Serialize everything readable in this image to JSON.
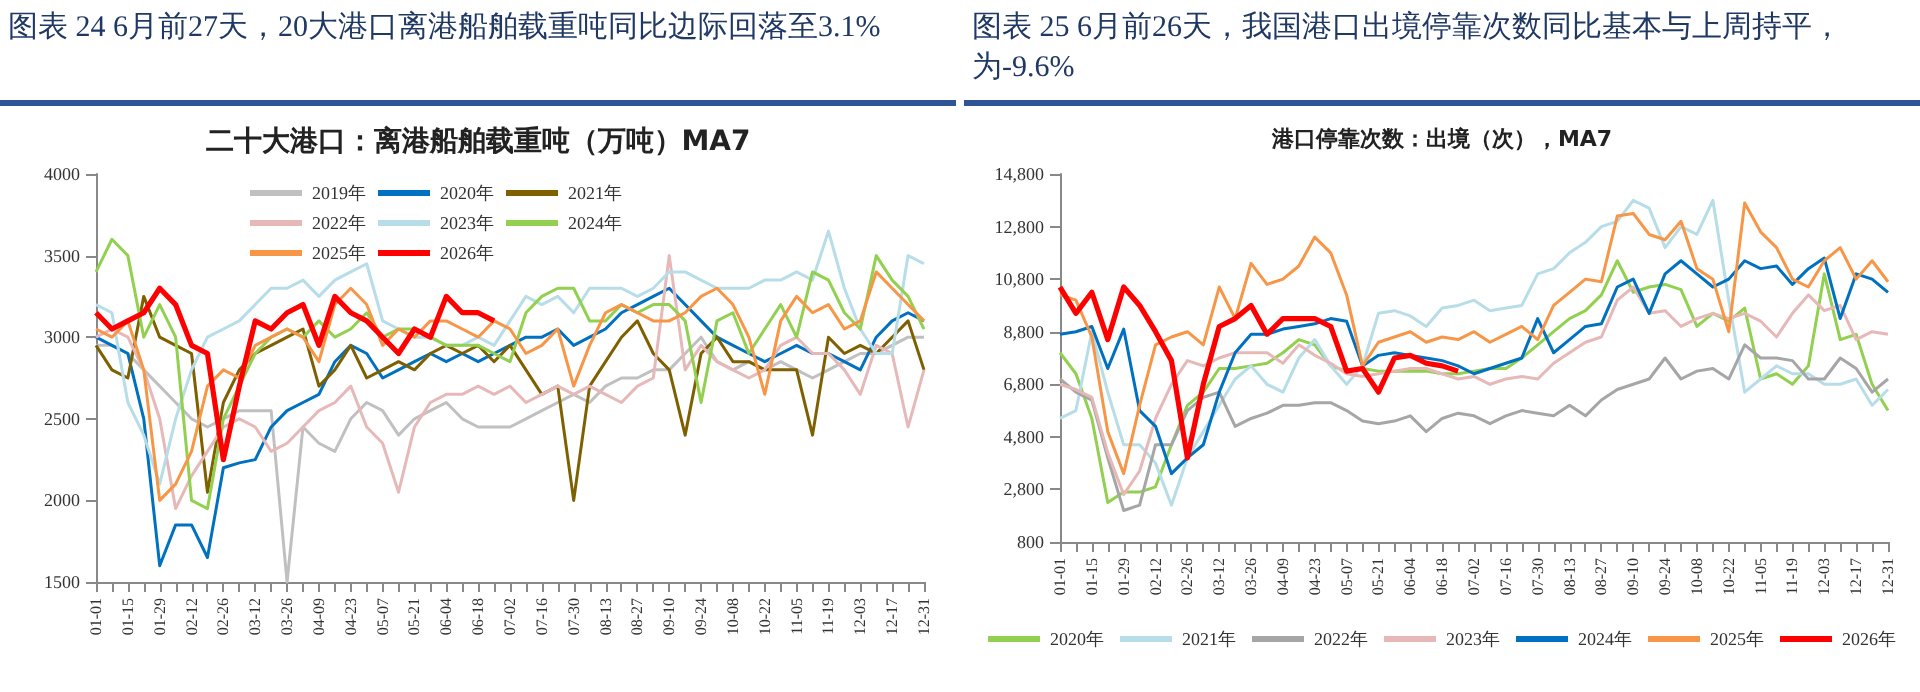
{
  "chart_data": [
    {
      "type": "line",
      "title": "图表 24 6月前27天，20大港口离港船舶载重吨同比边际回落至3.1%",
      "subtitle": "二十大港口：离港船舶载重吨（万吨）MA7",
      "categories": [
        "01-01",
        null,
        "01-15",
        null,
        "01-29",
        null,
        "02-12",
        null,
        "02-26",
        null,
        "03-12",
        null,
        "03-26",
        null,
        "04-09",
        null,
        "04-23",
        null,
        "05-07",
        null,
        "05-21",
        null,
        "06-04",
        null,
        "06-18",
        null,
        "07-02",
        null,
        "07-16",
        null,
        "07-30",
        null,
        "08-13",
        null,
        "08-27",
        null,
        "09-10",
        null,
        "09-24",
        null,
        "10-08",
        null,
        "10-22",
        null,
        "11-05",
        null,
        "11-19",
        null,
        "12-03",
        null,
        "12-17",
        null,
        "12-31"
      ],
      "ylim": [
        1500,
        4000
      ],
      "yticks": [
        1500,
        2000,
        2500,
        3000,
        3500,
        4000
      ],
      "legend": "top",
      "series": [
        {
          "name": "2019年",
          "color": "#c0c0c0",
          "values": [
            2950,
            2950,
            2900,
            2800,
            2700,
            2600,
            2500,
            2450,
            2500,
            2550,
            2550,
            2550,
            1500,
            2450,
            2350,
            2300,
            2500,
            2600,
            2550,
            2400,
            2500,
            2550,
            2600,
            2500,
            2450,
            2450,
            2450,
            2500,
            2550,
            2600,
            2650,
            2600,
            2700,
            2750,
            2750,
            2800,
            2800,
            2900,
            3000,
            2850,
            2800,
            2850,
            2800,
            2850,
            2800,
            2750,
            2800,
            2850,
            2900,
            2900,
            2950,
            3000,
            3000
          ]
        },
        {
          "name": "2020年",
          "color": "#0070c0",
          "values": [
            3000,
            2950,
            2900,
            2500,
            1600,
            1850,
            1850,
            1650,
            2200,
            2230,
            2250,
            2450,
            2550,
            2600,
            2650,
            2850,
            2950,
            2900,
            2750,
            2800,
            2850,
            2900,
            2850,
            2900,
            2850,
            2900,
            2950,
            3000,
            3000,
            3050,
            2950,
            3000,
            3050,
            3150,
            3200,
            3250,
            3300,
            3200,
            3100,
            3000,
            2950,
            2900,
            2850,
            2900,
            2950,
            2900,
            2900,
            2850,
            2800,
            3000,
            3100,
            3150,
            3100
          ]
        },
        {
          "name": "2021年",
          "color": "#7f6000",
          "values": [
            2950,
            2800,
            2750,
            3250,
            3000,
            2950,
            2900,
            2050,
            2600,
            2800,
            2900,
            2950,
            3000,
            3050,
            2700,
            2800,
            2950,
            2750,
            2800,
            2850,
            2800,
            2900,
            2950,
            2900,
            2950,
            2850,
            2950,
            2800,
            2650,
            2700,
            2000,
            2700,
            2850,
            3000,
            3100,
            2900,
            2800,
            2400,
            2900,
            3000,
            2850,
            2850,
            2800,
            2800,
            2800,
            2400,
            3000,
            2900,
            2950,
            2900,
            3000,
            3100,
            2800
          ]
        },
        {
          "name": "2022年",
          "color": "#e6b9b8",
          "values": [
            3000,
            3050,
            3000,
            2800,
            2500,
            1950,
            2150,
            2300,
            2450,
            2500,
            2450,
            2300,
            2350,
            2450,
            2550,
            2600,
            2700,
            2450,
            2350,
            2050,
            2450,
            2600,
            2650,
            2650,
            2700,
            2650,
            2700,
            2600,
            2650,
            2700,
            2650,
            2700,
            2650,
            2600,
            2700,
            2750,
            3500,
            2800,
            2950,
            2850,
            2800,
            2750,
            2800,
            2950,
            3000,
            2900,
            2900,
            2800,
            2650,
            2950,
            2900,
            2450,
            2800
          ]
        },
        {
          "name": "2023年",
          "color": "#b7dde8",
          "values": [
            3200,
            3150,
            2600,
            2400,
            2100,
            2500,
            2800,
            3000,
            3050,
            3100,
            3200,
            3300,
            3300,
            3350,
            3250,
            3350,
            3400,
            3450,
            3100,
            3050,
            3000,
            3000,
            2950,
            2950,
            3000,
            2950,
            3100,
            3250,
            3200,
            3250,
            3150,
            3300,
            3300,
            3300,
            3250,
            3300,
            3400,
            3400,
            3350,
            3300,
            3300,
            3300,
            3350,
            3350,
            3400,
            3350,
            3650,
            3300,
            3050,
            2900,
            2900,
            3500,
            3450
          ]
        },
        {
          "name": "2024年",
          "color": "#92d050",
          "values": [
            3400,
            3600,
            3500,
            3000,
            3200,
            3000,
            2000,
            1950,
            2500,
            2700,
            2900,
            3000,
            3050,
            3000,
            3100,
            3000,
            3050,
            3150,
            3000,
            3050,
            3050,
            3000,
            2950,
            2950,
            2950,
            2900,
            2850,
            3150,
            3250,
            3300,
            3300,
            3100,
            3100,
            3200,
            3150,
            3200,
            3200,
            3100,
            2600,
            3100,
            3150,
            2900,
            3050,
            3200,
            3000,
            3400,
            3350,
            3150,
            3050,
            3500,
            3350,
            3250,
            3050
          ]
        },
        {
          "name": "2025年",
          "color": "#f79646",
          "values": [
            3050,
            3000,
            3100,
            2800,
            2000,
            2100,
            2300,
            2700,
            2800,
            2750,
            2950,
            3000,
            3050,
            3000,
            2850,
            3200,
            3300,
            3200,
            2950,
            3050,
            3000,
            3100,
            3100,
            3050,
            3000,
            3100,
            3050,
            2900,
            2950,
            3050,
            2700,
            2950,
            3150,
            3200,
            3150,
            3100,
            3100,
            3150,
            3250,
            3300,
            3200,
            3000,
            2650,
            3100,
            3250,
            3150,
            3200,
            3050,
            3100,
            3400,
            3300,
            3200,
            3100
          ]
        },
        {
          "name": "2026年",
          "color": "#ff0000",
          "values": [
            3150,
            3050,
            3100,
            3150,
            3300,
            3200,
            2950,
            2900,
            2250,
            2700,
            3100,
            3050,
            3150,
            3200,
            2950,
            3250,
            3150,
            3100,
            3000,
            2900,
            3050,
            3000,
            3250,
            3150,
            3150,
            3100,
            null,
            null,
            null,
            null,
            null,
            null,
            null,
            null,
            null,
            null,
            null,
            null,
            null,
            null,
            null,
            null,
            null,
            null,
            null,
            null,
            null,
            null,
            null,
            null,
            null,
            null,
            null
          ]
        }
      ]
    },
    {
      "type": "line",
      "title": "图表 25 6月前26天，我国港口出境停靠次数同比基本与上周持平，为-9.6%",
      "subtitle": "港口停靠次数：出境（次），MA7",
      "categories": [
        "01-01",
        null,
        "01-15",
        null,
        "01-29",
        null,
        "02-12",
        null,
        "02-26",
        null,
        "03-12",
        null,
        "03-26",
        null,
        "04-09",
        null,
        "04-23",
        null,
        "05-07",
        null,
        "05-21",
        null,
        "06-04",
        null,
        "06-18",
        null,
        "07-02",
        null,
        "07-16",
        null,
        "07-30",
        null,
        "08-13",
        null,
        "08-27",
        null,
        "09-10",
        null,
        "09-24",
        null,
        "10-08",
        null,
        "10-22",
        null,
        "11-05",
        null,
        "11-19",
        null,
        "12-03",
        null,
        "12-17",
        null,
        "12-31"
      ],
      "ylim": [
        800,
        14800
      ],
      "yticks": [
        {
          "value": 800,
          "label": "800"
        },
        {
          "value": 2800,
          "label": "2,800"
        },
        {
          "value": 4800,
          "label": "4,800"
        },
        {
          "value": 6800,
          "label": "6,800"
        },
        {
          "value": 8800,
          "label": "8,800"
        },
        {
          "value": 10800,
          "label": "10,800"
        },
        {
          "value": 12800,
          "label": "12,800"
        },
        {
          "value": 14800,
          "label": "14,800"
        }
      ],
      "legend": "bottom",
      "series": [
        {
          "name": "2020年",
          "color": "#92d050",
          "values": [
            8000,
            7200,
            5500,
            2300,
            2700,
            2700,
            2900,
            4500,
            6000,
            6500,
            7400,
            7400,
            7500,
            7600,
            8000,
            8500,
            8300,
            7500,
            7300,
            7400,
            7300,
            7300,
            7300,
            7300,
            7200,
            7200,
            7300,
            7400,
            7400,
            7800,
            8300,
            8800,
            9300,
            9600,
            10200,
            11500,
            10300,
            10500,
            10600,
            10400,
            9000,
            9500,
            9200,
            9700,
            7000,
            7200,
            6800,
            7500,
            11000,
            8500,
            8700,
            6800,
            5800
          ]
        },
        {
          "name": "2021年",
          "color": "#b7dde8",
          "values": [
            5500,
            5800,
            8800,
            6500,
            4500,
            4500,
            3800,
            2200,
            4000,
            5000,
            6000,
            7000,
            7500,
            6800,
            6500,
            7800,
            8500,
            7500,
            6800,
            7500,
            9500,
            9600,
            9400,
            9000,
            9700,
            9800,
            10000,
            9600,
            9700,
            9800,
            11000,
            11200,
            11800,
            12200,
            12800,
            13000,
            13800,
            13500,
            12000,
            12800,
            12500,
            13800,
            10000,
            6500,
            7000,
            7500,
            7200,
            7200,
            6800,
            6800,
            7000,
            6000,
            6600
          ]
        },
        {
          "name": "2022年",
          "color": "#a6a6a6",
          "values": [
            7000,
            6500,
            6200,
            4000,
            2000,
            2200,
            4500,
            4500,
            5800,
            6300,
            6500,
            5200,
            5500,
            5700,
            6000,
            6000,
            6100,
            6100,
            5800,
            5400,
            5300,
            5400,
            5600,
            5000,
            5500,
            5700,
            5600,
            5300,
            5600,
            5800,
            5700,
            5600,
            6000,
            5600,
            6200,
            6600,
            6800,
            7000,
            7800,
            7000,
            7300,
            7400,
            7000,
            8300,
            7800,
            7800,
            7700,
            7000,
            7000,
            7800,
            7400,
            6500,
            7000
          ]
        },
        {
          "name": "2023年",
          "color": "#e6b9b8",
          "values": [
            6800,
            6600,
            6300,
            4200,
            2600,
            3500,
            5500,
            6800,
            7700,
            7500,
            7800,
            8000,
            8000,
            8000,
            7600,
            8300,
            7900,
            7600,
            7200,
            7100,
            7200,
            7300,
            7400,
            7400,
            7200,
            7000,
            7100,
            6800,
            7000,
            7100,
            7000,
            7600,
            8000,
            8400,
            8600,
            10000,
            10500,
            9500,
            9600,
            9000,
            9300,
            9500,
            9300,
            9500,
            9200,
            8600,
            9500,
            10200,
            9600,
            9800,
            8500,
            8800,
            8700
          ]
        },
        {
          "name": "2024年",
          "color": "#0070c0",
          "values": [
            8700,
            8800,
            9000,
            7400,
            8900,
            5800,
            5200,
            3400,
            4000,
            4500,
            6500,
            8000,
            8700,
            8700,
            8900,
            9000,
            9100,
            9300,
            9200,
            7500,
            7900,
            8000,
            7900,
            7800,
            7700,
            7500,
            7200,
            7400,
            7600,
            7800,
            9300,
            8000,
            8500,
            9000,
            9100,
            10500,
            10800,
            9500,
            11000,
            11500,
            11000,
            10500,
            10800,
            11500,
            11200,
            11300,
            10600,
            11200,
            11600,
            9300,
            11000,
            10800,
            10300
          ]
        },
        {
          "name": "2025年",
          "color": "#f79646",
          "values": [
            10200,
            10000,
            8600,
            5000,
            3400,
            6000,
            8300,
            8600,
            8800,
            8300,
            10500,
            9300,
            11400,
            10600,
            10800,
            11300,
            12400,
            11800,
            10200,
            7500,
            8400,
            8600,
            8800,
            8400,
            8600,
            8500,
            8800,
            8400,
            8700,
            9000,
            8500,
            9800,
            10300,
            10800,
            10700,
            13200,
            13300,
            12500,
            12300,
            13000,
            11200,
            10800,
            8800,
            13700,
            12600,
            12000,
            10800,
            10500,
            11500,
            12000,
            10800,
            11500,
            10700
          ]
        },
        {
          "name": "2026年",
          "color": "#ff0000",
          "values": [
            10500,
            9500,
            10300,
            8500,
            10500,
            9800,
            8800,
            7700,
            4000,
            6800,
            9000,
            9300,
            9800,
            8700,
            9300,
            9300,
            9300,
            9000,
            7300,
            7400,
            6500,
            7800,
            7900,
            7600,
            7500,
            7300,
            null,
            null,
            null,
            null,
            null,
            null,
            null,
            null,
            null,
            null,
            null,
            null,
            null,
            null,
            null,
            null,
            null,
            null,
            null,
            null,
            null,
            null,
            null,
            null,
            null,
            null,
            null
          ]
        }
      ]
    }
  ]
}
